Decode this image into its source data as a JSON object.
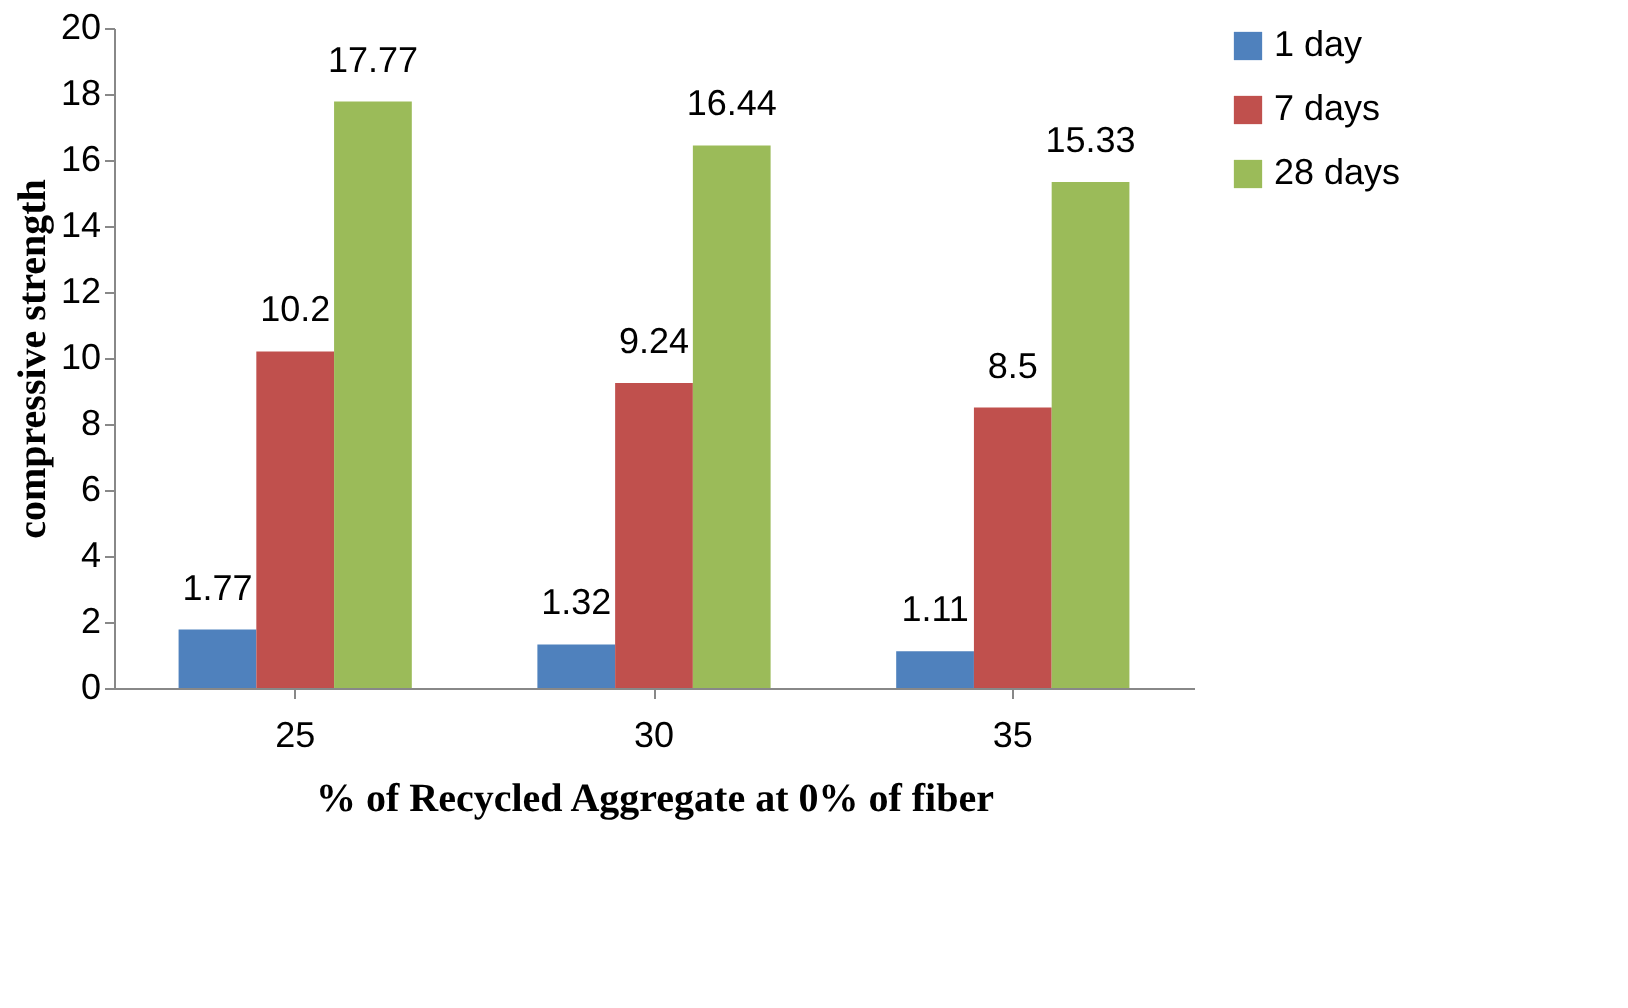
{
  "chart_data": {
    "type": "bar",
    "xlabel": "% of Recycled Aggregate at 0% of fiber",
    "ylabel": "compressive strength",
    "categories": [
      "25",
      "30",
      "35"
    ],
    "series": [
      {
        "name": "1 day",
        "color": "#4f81bd",
        "values": [
          1.77,
          1.32,
          1.11
        ]
      },
      {
        "name": "7 days",
        "color": "#c0504d",
        "values": [
          10.2,
          9.24,
          8.5
        ]
      },
      {
        "name": "28 days",
        "color": "#9bbb59",
        "values": [
          17.77,
          16.44,
          15.33
        ]
      }
    ],
    "ylim": [
      0,
      20
    ],
    "yticks": [
      0,
      2,
      4,
      6,
      8,
      10,
      12,
      14,
      16,
      18,
      20
    ],
    "data_labels": true,
    "legend": "right",
    "grid": false
  }
}
